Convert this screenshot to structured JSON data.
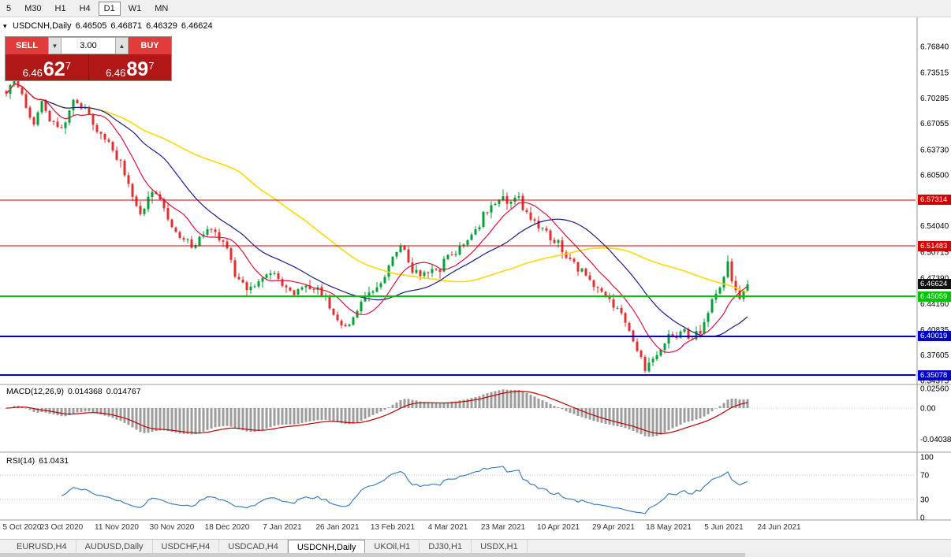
{
  "toolbar": {
    "timeframes": [
      {
        "label": "5",
        "active": false
      },
      {
        "label": "M30",
        "active": false
      },
      {
        "label": "H1",
        "active": false
      },
      {
        "label": "H4",
        "active": false
      },
      {
        "label": "D1",
        "active": true
      },
      {
        "label": "W1",
        "active": false
      },
      {
        "label": "MN",
        "active": false
      }
    ]
  },
  "chart": {
    "symbol_period": "USDCNH,Daily",
    "open": "6.46505",
    "high": "6.46871",
    "low": "6.46329",
    "close": "6.46624"
  },
  "trade_panel": {
    "sell_label": "SELL",
    "buy_label": "BUY",
    "volume": "3.00",
    "sell_price": {
      "prefix": "6.46",
      "main": "62",
      "sup": "7"
    },
    "buy_price": {
      "prefix": "6.46",
      "main": "89",
      "sup": "7"
    }
  },
  "price_axis": {
    "labels": [
      "6.76840",
      "6.73515",
      "6.70285",
      "6.67055",
      "6.63730",
      "6.60500",
      "6.57270",
      "6.54040",
      "6.50715",
      "6.47390",
      "6.44160",
      "6.40835",
      "6.37605",
      "6.34375"
    ],
    "current": "6.46624",
    "current_color": "#111111"
  },
  "hlines": [
    {
      "label": "6.57314",
      "value": 6.57314,
      "color": "#d40000",
      "width": 1
    },
    {
      "label": "6.51483",
      "value": 6.51483,
      "color": "#d40000",
      "width": 1
    },
    {
      "label": "6.45059",
      "value": 6.45059,
      "color": "#00c400",
      "width": 2
    },
    {
      "label": "6.40019",
      "value": 6.40019,
      "color": "#0000c8",
      "width": 2
    },
    {
      "label": "6.35078",
      "value": 6.35078,
      "color": "#0000c8",
      "width": 2
    }
  ],
  "macd": {
    "name": "MACD(12,26,9)",
    "value1": "0.014368",
    "value2": "0.014767",
    "axis": [
      {
        "label": "0.02560",
        "value": 0.0256
      },
      {
        "label": "0.00",
        "value": 0
      },
      {
        "label": "-0.04038",
        "value": -0.04038
      }
    ]
  },
  "rsi": {
    "name": "RSI(14)",
    "value": "61.0431",
    "axis": [
      {
        "label": "100",
        "value": 100
      },
      {
        "label": "70",
        "value": 70
      },
      {
        "label": "30",
        "value": 30
      },
      {
        "label": "0",
        "value": 0
      }
    ],
    "levels": [
      70,
      30
    ]
  },
  "date_axis": {
    "labels": [
      "5 Oct 2020",
      "23 Oct 2020",
      "11 Nov 2020",
      "30 Nov 2020",
      "18 Dec 2020",
      "7 Jan 2021",
      "26 Jan 2021",
      "13 Feb 2021",
      "4 Mar 2021",
      "23 Mar 2021",
      "10 Apr 2021",
      "29 Apr 2021",
      "18 May 2021",
      "5 Jun 2021",
      "24 Jun 2021"
    ]
  },
  "tabs": [
    {
      "label": "EURUSD,H4",
      "active": false
    },
    {
      "label": "AUDUSD,Daily",
      "active": false
    },
    {
      "label": "USDCHF,H4",
      "active": false
    },
    {
      "label": "USDCAD,H4",
      "active": false
    },
    {
      "label": "USDCNH,Daily",
      "active": true
    },
    {
      "label": "UKOil,H1",
      "active": false
    },
    {
      "label": "DJ30,H1",
      "active": false
    },
    {
      "label": "USDX,H1",
      "active": false
    }
  ],
  "chart_data": {
    "type": "candlestick",
    "symbol": "USDCNH",
    "timeframe": "Daily",
    "bars": 189,
    "last_close": 6.46624,
    "up_color": "#00a13a",
    "down_color": "#e03030",
    "anchors": [
      [
        0,
        6.712
      ],
      [
        2,
        6.73
      ],
      [
        5,
        6.695
      ],
      [
        7,
        6.67
      ],
      [
        9,
        6.701
      ],
      [
        11,
        6.675
      ],
      [
        14,
        6.662
      ],
      [
        17,
        6.7
      ],
      [
        20,
        6.69
      ],
      [
        23,
        6.662
      ],
      [
        26,
        6.645
      ],
      [
        28,
        6.63
      ],
      [
        31,
        6.59
      ],
      [
        34,
        6.556
      ],
      [
        37,
        6.585
      ],
      [
        40,
        6.562
      ],
      [
        42,
        6.537
      ],
      [
        45,
        6.524
      ],
      [
        48,
        6.516
      ],
      [
        51,
        6.54
      ],
      [
        54,
        6.528
      ],
      [
        56,
        6.513
      ],
      [
        58,
        6.478
      ],
      [
        61,
        6.46
      ],
      [
        64,
        6.473
      ],
      [
        67,
        6.48
      ],
      [
        70,
        6.468
      ],
      [
        73,
        6.455
      ],
      [
        76,
        6.47
      ],
      [
        79,
        6.458
      ],
      [
        82,
        6.44
      ],
      [
        84,
        6.42
      ],
      [
        86,
        6.408
      ],
      [
        88,
        6.428
      ],
      [
        90,
        6.445
      ],
      [
        93,
        6.452
      ],
      [
        96,
        6.478
      ],
      [
        98,
        6.495
      ],
      [
        100,
        6.518
      ],
      [
        102,
        6.49
      ],
      [
        105,
        6.478
      ],
      [
        108,
        6.49
      ],
      [
        110,
        6.484
      ],
      [
        112,
        6.502
      ],
      [
        115,
        6.515
      ],
      [
        118,
        6.53
      ],
      [
        121,
        6.552
      ],
      [
        124,
        6.572
      ],
      [
        126,
        6.58
      ],
      [
        128,
        6.568
      ],
      [
        130,
        6.577
      ],
      [
        132,
        6.555
      ],
      [
        135,
        6.54
      ],
      [
        138,
        6.528
      ],
      [
        140,
        6.515
      ],
      [
        143,
        6.498
      ],
      [
        146,
        6.484
      ],
      [
        149,
        6.468
      ],
      [
        152,
        6.452
      ],
      [
        154,
        6.44
      ],
      [
        156,
        6.428
      ],
      [
        158,
        6.408
      ],
      [
        160,
        6.378
      ],
      [
        162,
        6.36
      ],
      [
        164,
        6.372
      ],
      [
        166,
        6.388
      ],
      [
        168,
        6.396
      ],
      [
        170,
        6.402
      ],
      [
        172,
        6.407
      ],
      [
        174,
        6.398
      ],
      [
        176,
        6.406
      ],
      [
        178,
        6.428
      ],
      [
        180,
        6.458
      ],
      [
        182,
        6.48
      ],
      [
        183,
        6.492
      ],
      [
        184,
        6.47
      ],
      [
        185,
        6.458
      ],
      [
        186,
        6.452
      ],
      [
        187,
        6.461
      ],
      [
        188,
        6.46624
      ]
    ],
    "moving_averages": [
      {
        "period": 10,
        "color": "#dc143c"
      },
      {
        "period": 25,
        "color": "#1b1b8a"
      },
      {
        "period": 60,
        "color": "#ffd900"
      }
    ],
    "macd_params": [
      12,
      26,
      9
    ],
    "rsi_period": 14
  }
}
